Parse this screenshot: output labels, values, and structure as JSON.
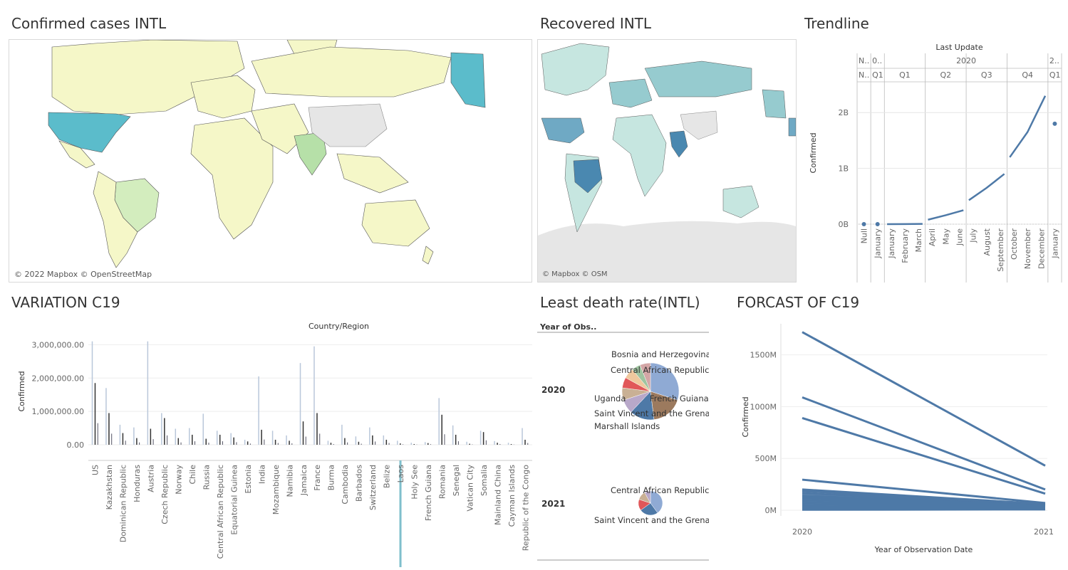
{
  "dashboard": {
    "panels": {
      "confirmed_map": {
        "title": "Confirmed cases INTL",
        "credit": "© 2022 Mapbox © OpenStreetMap"
      },
      "recovered_map": {
        "title": "Recovered INTL",
        "credit": "© Mapbox © OSM"
      },
      "trendline": {
        "title": "Trendline"
      },
      "variation": {
        "title": "VARIATION C19"
      },
      "least_death": {
        "title": "Least death rate(INTL)"
      },
      "forecast": {
        "title": "FORCAST OF C19"
      }
    },
    "colors": {
      "series": "#4e79a7",
      "map_light": "#f5f7c8",
      "map_mid": "#d3edbe",
      "map_high": "#5bbccb",
      "recovered_low": "#c6e6e0",
      "recovered_mid": "#96cbcf",
      "recovered_high": "#4a88b0",
      "no_data": "#e6e6e6",
      "selection": "#7fbfcc"
    }
  },
  "chart_data": [
    {
      "type": "line",
      "panel": "Trendline",
      "title": "Last Update",
      "ylabel": "Confirmed",
      "ylim": [
        0,
        2500000000
      ],
      "yticks": [
        "0B",
        "1B",
        "2B"
      ],
      "header_years": [
        "N..",
        "0..",
        "2020",
        "2.."
      ],
      "header_quarters": [
        "N..",
        "Q1",
        "Q1",
        "Q2",
        "Q3",
        "Q4",
        "Q1"
      ],
      "x": [
        "Null",
        "January",
        "January",
        "February",
        "March",
        "April",
        "May",
        "June",
        "July",
        "August",
        "September",
        "October",
        "November",
        "December",
        "January"
      ],
      "segments": [
        {
          "name": "Null",
          "x_from": 0,
          "x_to": 0,
          "values": [
            0
          ]
        },
        {
          "name": "0",
          "x_from": 1,
          "x_to": 1,
          "values": [
            0
          ]
        },
        {
          "name": "2020 Q1",
          "x_from": 2,
          "x_to": 4,
          "values": [
            0,
            2000000,
            5000000
          ]
        },
        {
          "name": "2020 Q2",
          "x_from": 5,
          "x_to": 7,
          "values": [
            80000000,
            160000000,
            250000000
          ]
        },
        {
          "name": "2020 Q3",
          "x_from": 8,
          "x_to": 10,
          "values": [
            430000000,
            650000000,
            900000000
          ]
        },
        {
          "name": "2020 Q4",
          "x_from": 11,
          "x_to": 13,
          "values": [
            1200000000,
            1650000000,
            2300000000
          ]
        },
        {
          "name": "2021 Q1",
          "x_from": 14,
          "x_to": 14,
          "values": [
            1800000000
          ]
        }
      ]
    },
    {
      "type": "bar",
      "panel": "VARIATION C19",
      "title": "Country/Region",
      "ylabel": "Confirmed",
      "ylim": [
        0,
        3200000
      ],
      "yticks": [
        "0.00",
        "1,000,000.00",
        "2,000,000.00",
        "3,000,000.00"
      ],
      "categories": [
        "US",
        "Kazakhstan",
        "Dominican Republic",
        "Honduras",
        "Austria",
        "Czech Republic",
        "Norway",
        "Chile",
        "Russia",
        "Central African Republic",
        "Equatorial Guinea",
        "Estonia",
        "India",
        "Mozambique",
        "Namibia",
        "Jamaica",
        "France",
        "Burma",
        "Cambodia",
        "Barbados",
        "Switzerland",
        "Belize",
        "Laos",
        "Holy See",
        "French Guiana",
        "Romania",
        "Senegal",
        "Vatican City",
        "Somalia",
        "Mainland China",
        "Cayman Islands",
        "Republic of the Congo"
      ],
      "series": [
        {
          "values": [
            3100000,
            1700000,
            600000,
            520000,
            3100000,
            950000,
            480000,
            500000,
            930000,
            420000,
            350000,
            150000,
            2050000,
            420000,
            280000,
            2450000,
            2950000,
            120000,
            600000,
            250000,
            520000,
            280000,
            120000,
            60000,
            80000,
            1400000,
            580000,
            90000,
            420000,
            110000,
            60000,
            500000
          ]
        },
        {
          "values": [
            1850000,
            950000,
            350000,
            200000,
            480000,
            800000,
            200000,
            300000,
            180000,
            300000,
            220000,
            100000,
            450000,
            150000,
            120000,
            700000,
            950000,
            60000,
            200000,
            90000,
            280000,
            150000,
            40000,
            20000,
            50000,
            900000,
            300000,
            30000,
            380000,
            60000,
            20000,
            150000
          ]
        }
      ],
      "selected": "Laos"
    },
    {
      "type": "pie",
      "panel": "Least death rate(INTL)",
      "row_header": "Year of Obs..",
      "rows": [
        {
          "year": "2020",
          "labels": [
            "Bosnia and Herzegovina",
            "Central African Republic",
            "Uganda",
            "French Guiana",
            "Saint Vincent and the Grenac",
            "Marshall Islands"
          ],
          "slices": [
            {
              "value": 30,
              "color": "#8faad4"
            },
            {
              "value": 18,
              "color": "#9c7a5e"
            },
            {
              "value": 14,
              "color": "#4e79a7"
            },
            {
              "value": 8,
              "color": "#b8a8c9"
            },
            {
              "value": 7,
              "color": "#c9b094"
            },
            {
              "value": 6,
              "color": "#e15759"
            },
            {
              "value": 6,
              "color": "#f0c89e"
            },
            {
              "value": 5,
              "color": "#9fc4a0"
            },
            {
              "value": 6,
              "color": "#d4a6a6"
            }
          ]
        },
        {
          "year": "2021",
          "labels": [
            "Central African Republic",
            "Saint Vincent and the Grenac"
          ],
          "slices": [
            {
              "value": 40,
              "color": "#8faad4"
            },
            {
              "value": 25,
              "color": "#4e79a7"
            },
            {
              "value": 15,
              "color": "#e15759"
            },
            {
              "value": 12,
              "color": "#c9b094"
            },
            {
              "value": 8,
              "color": "#b8a8c9"
            }
          ]
        }
      ]
    },
    {
      "type": "line",
      "panel": "FORCAST OF C19",
      "xlabel": "Year of Observation Date",
      "ylabel": "Confirmed",
      "x": [
        "2020",
        "2021"
      ],
      "ylim": [
        0,
        1800000000
      ],
      "yticks": [
        "0M",
        "500M",
        "1000M",
        "1500M"
      ],
      "series": [
        {
          "values": [
            1720000000,
            430000000
          ]
        },
        {
          "values": [
            1090000000,
            200000000
          ]
        },
        {
          "values": [
            890000000,
            160000000
          ]
        },
        {
          "values": [
            295000000,
            70000000
          ]
        },
        {
          "values": [
            200000000,
            60000000
          ]
        },
        {
          "values": [
            185000000,
            55000000
          ]
        },
        {
          "values": [
            165000000,
            50000000
          ]
        },
        {
          "values": [
            140000000,
            45000000
          ]
        },
        {
          "values": [
            120000000,
            40000000
          ]
        },
        {
          "values": [
            100000000,
            35000000
          ]
        },
        {
          "values": [
            80000000,
            30000000
          ]
        },
        {
          "values": [
            60000000,
            25000000
          ]
        },
        {
          "values": [
            40000000,
            20000000
          ]
        },
        {
          "values": [
            20000000,
            15000000
          ]
        },
        {
          "values": [
            5000000,
            8000000
          ]
        }
      ]
    }
  ]
}
